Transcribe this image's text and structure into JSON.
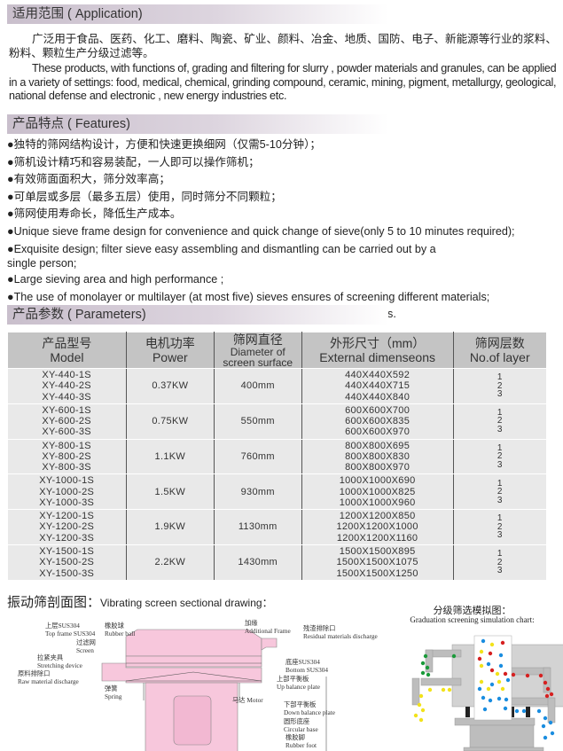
{
  "application": {
    "heading": "适用范围 ( Application)",
    "zh": "广泛用于食品、医药、化工、磨料、陶瓷、矿业、颜料、冶金、地质、国防、电子、新能源等行业的浆料、粉料、颗粒生产分级过滤等。",
    "en": "These products, with functions  of, grading and filtering  for slurry , powder materials and granules, can be applied in a variety of settings: food, medical, chemical, grinding  compound, ceramic, mining, pigment, metallurgy, geological,  national  defense  and  electronic , new energy industries  etc."
  },
  "features": {
    "heading": "产品特点 ( Features)",
    "items": [
      "●独特的筛网结构设计，方便和快速更换细网（仅需5-10分钟）；",
      "●筛机设计精巧和容易装配，一人即可以操作筛机；",
      "●有效筛面面积大，筛分效率高；",
      "●可单层或多层（最多五层）使用，同时筛分不同颗粒；",
      "●筛网使用寿命长，降低生产成本。",
      "●Unique sieve frame design for convenience and quick change of sieve(only 5 to 10 minutes required);",
      "●Exquisite design;  filter sieve easy assembling and dismantling can be carried out by a single person;",
      "●Large sieving area and high performance ;",
      "●The use of monolayer  or  multilayer (at  most  five) sieves  ensures  of   screening   different materials;",
      "●Screening  mesh  have  an exceptionally  long  service  life  and  keep  down  costs."
    ]
  },
  "parameters": {
    "heading": "产品参数 ( Parameters)",
    "columns": [
      {
        "zh": "产品型号",
        "en": "Model"
      },
      {
        "zh": "电机功率",
        "en": "Power"
      },
      {
        "zh": "筛网直径",
        "en": "Diameter of screen surface"
      },
      {
        "zh": "外形尺寸（mm）",
        "en": "External dimenseons"
      },
      {
        "zh": "筛网层数",
        "en": "No.of layer"
      }
    ],
    "rows": [
      {
        "models": [
          "XY-440-1S",
          "XY-440-2S",
          "XY-440-3S"
        ],
        "power": "0.37KW",
        "diameter": "400mm",
        "dims": [
          "440X440X592",
          "440X440X715",
          "440X440X840"
        ],
        "layers": [
          "1",
          "2",
          "3"
        ]
      },
      {
        "models": [
          "XY-600-1S",
          "XY-600-2S",
          "XY-600-3S"
        ],
        "power": "0.75KW",
        "diameter": "550mm",
        "dims": [
          "600X600X700",
          "600X600X835",
          "600X600X970"
        ],
        "layers": [
          "1",
          "2",
          "3"
        ]
      },
      {
        "models": [
          "XY-800-1S",
          "XY-800-2S",
          "XY-800-3S"
        ],
        "power": "1.1KW",
        "diameter": "760mm",
        "dims": [
          "800X800X695",
          "800X800X830",
          "800X800X970"
        ],
        "layers": [
          "1",
          "2",
          "3"
        ]
      },
      {
        "models": [
          "XY-1000-1S",
          "XY-1000-2S",
          "XY-1000-3S"
        ],
        "power": "1.5KW",
        "diameter": "930mm",
        "dims": [
          "1000X1000X690",
          "1000X1000X825",
          "1000X1000X960"
        ],
        "layers": [
          "1",
          "2",
          "3"
        ]
      },
      {
        "models": [
          "XY-1200-1S",
          "XY-1200-2S",
          "XY-1200-3S"
        ],
        "power": "1.9KW",
        "diameter": "1130mm",
        "dims": [
          "1200X1200X850",
          "1200X1200X1000",
          "1200X1200X1160"
        ],
        "layers": [
          "1",
          "2",
          "3"
        ]
      },
      {
        "models": [
          "XY-1500-1S",
          "XY-1500-2S",
          "XY-1500-3S"
        ],
        "power": "2.2KW",
        "diameter": "1430mm",
        "dims": [
          "1500X1500X895",
          "1500X1500X1075",
          "1500X1500X1250"
        ],
        "layers": [
          "1",
          "2",
          "3"
        ]
      }
    ]
  },
  "drawing": {
    "title_zh": "振动筛剖面图：",
    "title_en": "Vibrating screen sectional drawing：",
    "body_color": "#f7c7dc",
    "labels": [
      {
        "zh": "上层SUS304",
        "en": "Top frame SUS304"
      },
      {
        "zh": "橡胶球",
        "en": "Rubber ball"
      },
      {
        "zh": "加缘",
        "en": "Additional Frame"
      },
      {
        "zh": "残渣排除口",
        "en": "Residual materials discharge"
      },
      {
        "zh": "过滤网",
        "en": "Screen"
      },
      {
        "zh": "拉紧夹具",
        "en": "Stretching device"
      },
      {
        "zh": "底座SUS304",
        "en": "Bottom SUS304"
      },
      {
        "zh": "原料排除口",
        "en": "Raw material discharge"
      },
      {
        "zh": "上部平衡板",
        "en": "Up balance plate"
      },
      {
        "zh": "弹簧",
        "en": "Spring"
      },
      {
        "zh": "马达",
        "en": "Motor"
      },
      {
        "zh": "下部平衡板",
        "en": "Down balance plate"
      },
      {
        "zh": "圆形底座",
        "en": "Circular base"
      },
      {
        "zh": "橡胶脚",
        "en": "Rubber foot"
      }
    ]
  },
  "simulation": {
    "title_zh": "分级筛选模拟图：",
    "title_en": "Graduation screening  simulation chart:",
    "particle_colors": {
      "green": "#1a9a3a",
      "yellow": "#f2e21a",
      "red": "#d62020",
      "blue": "#1a8de0"
    }
  }
}
